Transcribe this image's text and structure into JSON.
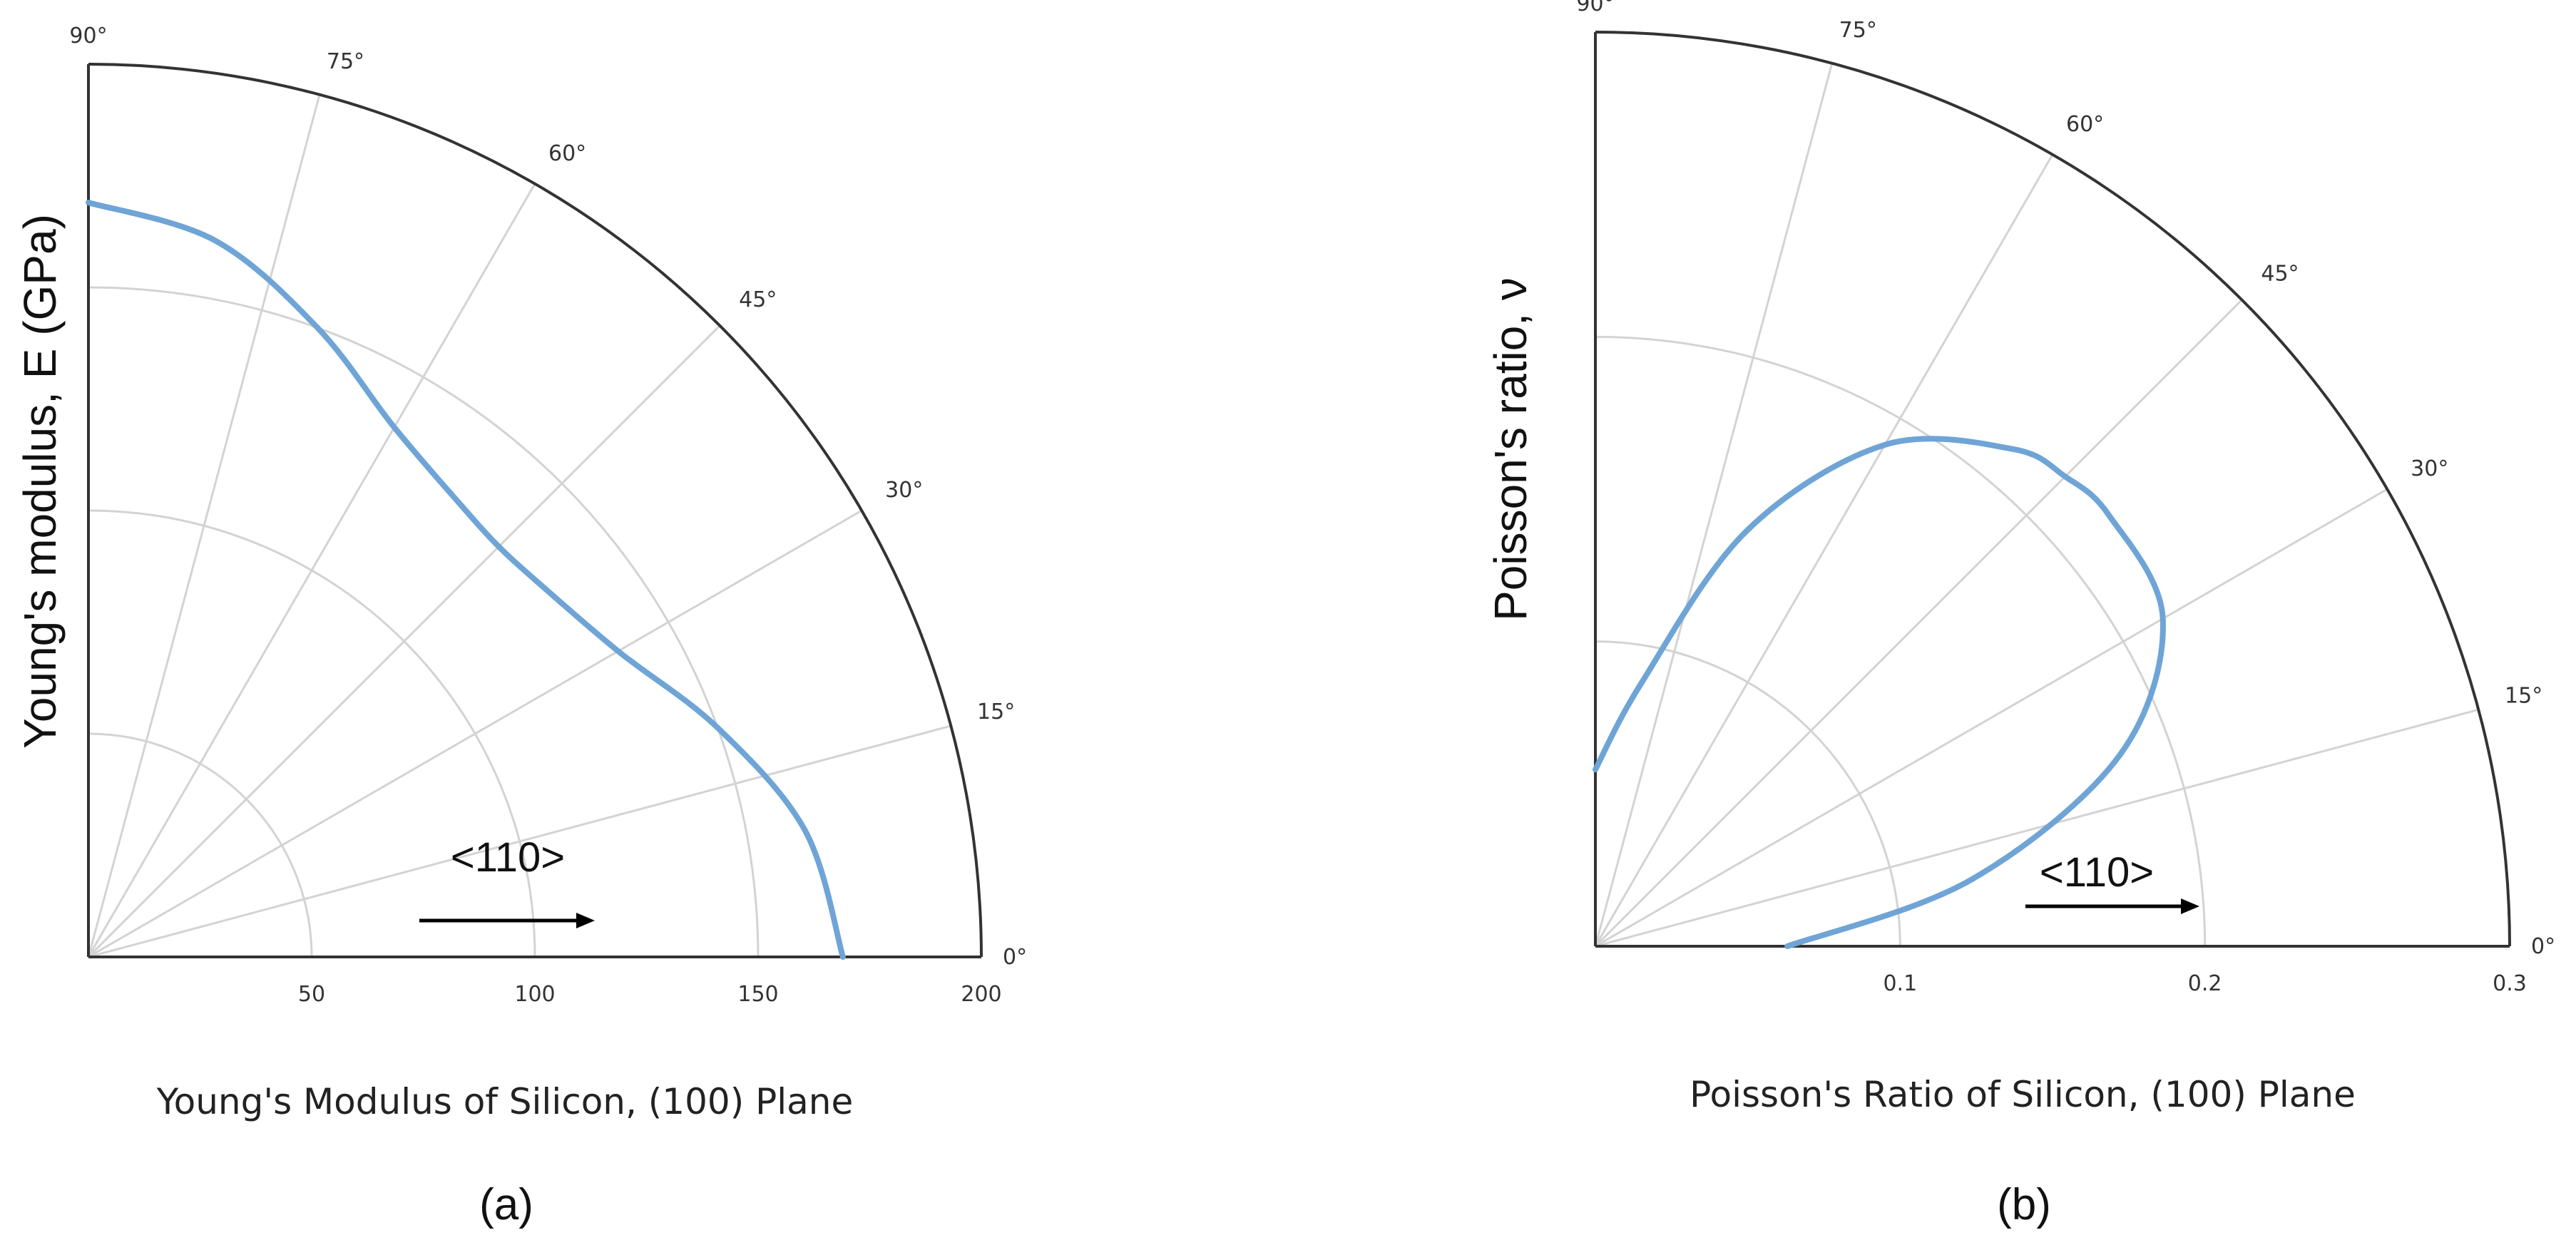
{
  "chart_data": [
    {
      "type": "polar-line",
      "panel_label": "(a)",
      "caption": "Young's Modulus of Silicon, (100) Plane",
      "ylabel": "Young's modulus, E (GPa)",
      "r_ticks": [
        50,
        100,
        150,
        200
      ],
      "r_tick_labels": [
        "50",
        "100",
        "150",
        "200"
      ],
      "rlim": [
        0,
        200
      ],
      "theta_ticks": [
        0,
        15,
        30,
        45,
        60,
        75,
        90
      ],
      "theta_tick_labels": [
        "0°",
        "15°",
        "30°",
        "45°",
        "60°",
        "75°",
        "90°"
      ],
      "theta_range": [
        0,
        90
      ],
      "grid": true,
      "direction_label": "<110>",
      "series": [
        {
          "color": "#6fa4d6",
          "theta": [
            0,
            10,
            20,
            30,
            40,
            45,
            50,
            60,
            70,
            80,
            90
          ],
          "r": [
            169,
            163,
            150,
            137,
            131,
            130,
            131,
            137,
            150,
            163,
            169
          ]
        }
      ]
    },
    {
      "type": "polar-line",
      "panel_label": "(b)",
      "caption": "Poisson's Ratio of Silicon, (100) Plane",
      "ylabel": "Poisson's ratio, ν",
      "r_ticks": [
        0.1,
        0.2,
        0.3
      ],
      "r_tick_labels": [
        "0.1",
        "0.2",
        "0.3"
      ],
      "rlim": [
        0,
        0.3
      ],
      "theta_ticks": [
        0,
        15,
        30,
        45,
        60,
        75,
        90
      ],
      "theta_tick_labels": [
        "0°",
        "15°",
        "30°",
        "45°",
        "60°",
        "75°",
        "90°"
      ],
      "theta_range": [
        0,
        90
      ],
      "grid": true,
      "direction_label": "<110>",
      "series": [
        {
          "color": "#6fa4d6",
          "theta": [
            0,
            10,
            20,
            30,
            40,
            45,
            50,
            60,
            70,
            80,
            90
          ],
          "r": [
            0.063,
            0.125,
            0.183,
            0.215,
            0.22,
            0.218,
            0.213,
            0.19,
            0.145,
            0.088,
            0.058
          ]
        }
      ]
    }
  ]
}
